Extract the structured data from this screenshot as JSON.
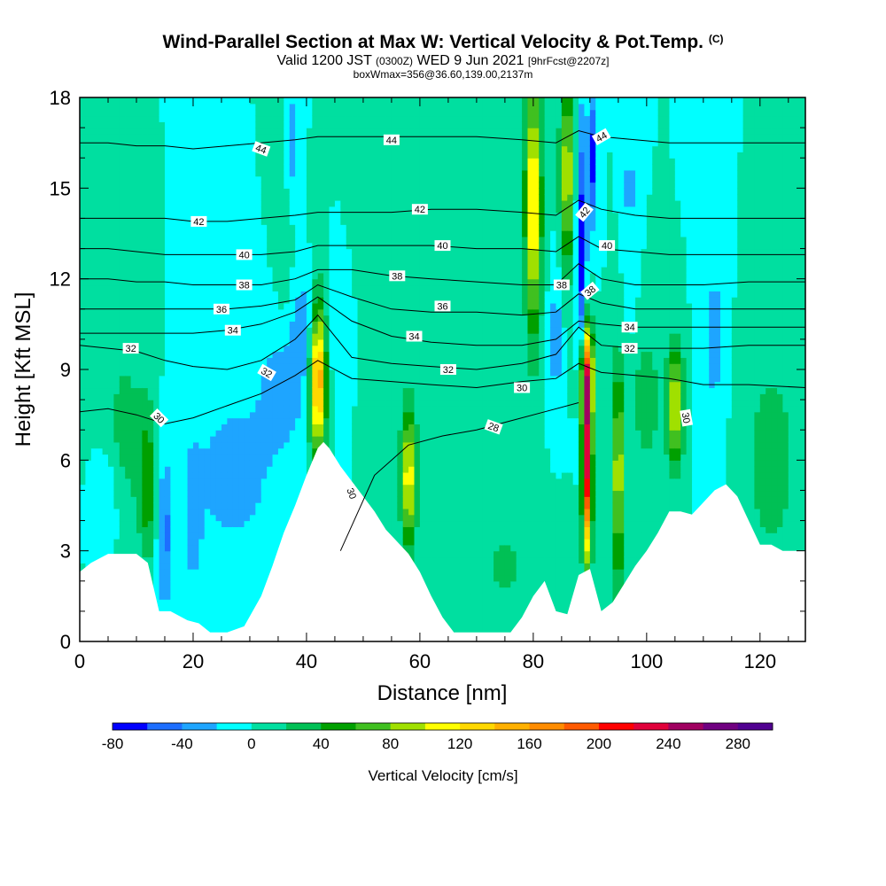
{
  "title": {
    "main": "Wind-Parallel Section at Max W: Vertical Velocity & Pot.Temp.",
    "copyright": "(C)",
    "valid_prefix": "Valid 1200 JST",
    "valid_utc": "(0300Z)",
    "valid_date": "WED 9 Jun 2021",
    "forecast": "[9hrFcst@2207z]",
    "box": "boxWmax=356@36.60,139.00,2137m"
  },
  "chart_data": {
    "type": "heatmap",
    "xlabel": "Distance [nm]",
    "ylabel": "Height [Kft MSL]",
    "xlim": [
      0,
      128
    ],
    "ylim": [
      0,
      18
    ],
    "x_ticks": [
      0,
      20,
      40,
      60,
      80,
      100,
      120
    ],
    "y_ticks": [
      0,
      3,
      6,
      9,
      12,
      15,
      18
    ],
    "background_value": 0,
    "terrain": {
      "x": [
        0,
        2,
        5,
        10,
        12,
        14,
        16,
        19,
        21,
        23,
        26,
        29,
        32,
        34,
        36,
        38,
        40,
        42,
        43,
        44,
        46,
        48,
        50,
        52,
        54,
        56,
        58,
        60,
        62,
        64,
        66,
        68,
        70,
        72,
        74,
        76,
        78,
        80,
        82,
        84,
        86,
        88,
        90,
        92,
        94,
        96,
        98,
        100,
        102,
        104,
        106,
        108,
        110,
        112,
        114,
        116,
        118,
        120,
        122,
        124,
        126,
        128
      ],
      "y": [
        2.3,
        2.6,
        2.9,
        2.9,
        2.6,
        1.0,
        1.0,
        0.7,
        0.6,
        0.3,
        0.3,
        0.5,
        1.5,
        2.5,
        3.6,
        4.5,
        5.5,
        6.4,
        6.6,
        6.4,
        5.8,
        5.3,
        4.8,
        4.3,
        3.7,
        3.3,
        2.9,
        2.3,
        1.5,
        0.8,
        0.3,
        0.3,
        0.3,
        0.3,
        0.3,
        0.3,
        0.8,
        1.5,
        2.0,
        1.0,
        0.9,
        2.2,
        2.4,
        1.0,
        1.3,
        1.9,
        2.5,
        3.0,
        3.6,
        4.3,
        4.3,
        4.2,
        4.6,
        5.0,
        5.2,
        4.8,
        4.0,
        3.2,
        3.2,
        3.0,
        3.0,
        3.0
      ]
    },
    "velocity_features": [
      {
        "x": 12,
        "y": 5.2,
        "sx": 1.2,
        "sy": 1.8,
        "value": 55
      },
      {
        "x": 42,
        "y": 8.8,
        "sx": 1.0,
        "sy": 1.8,
        "value": 170
      },
      {
        "x": 58,
        "y": 5.4,
        "sx": 0.9,
        "sy": 1.6,
        "value": 115
      },
      {
        "x": 80,
        "y": 14.5,
        "sx": 1.0,
        "sy": 3.0,
        "value": 130
      },
      {
        "x": 86,
        "y": 15.5,
        "sx": 0.9,
        "sy": 2.2,
        "value": 100
      },
      {
        "x": 89.5,
        "y": 6.2,
        "sx": 0.6,
        "sy": 2.5,
        "value": 230
      },
      {
        "x": 89.5,
        "y": 8.8,
        "sx": 0.9,
        "sy": 1.0,
        "value": 120
      },
      {
        "x": 95,
        "y": 5.5,
        "sx": 0.8,
        "sy": 2.5,
        "value": 100
      },
      {
        "x": 105,
        "y": 7.8,
        "sx": 1.0,
        "sy": 1.4,
        "value": 110
      },
      {
        "x": 100,
        "y": 8.0,
        "sx": 1.5,
        "sy": 1.5,
        "value": 40
      },
      {
        "x": 8,
        "y": 7.0,
        "sx": 2.5,
        "sy": 2.0,
        "value": 30
      },
      {
        "x": 36,
        "y": 15.0,
        "sx": 1.0,
        "sy": 3.0,
        "value": 25
      },
      {
        "x": 65,
        "y": 9.0,
        "sx": 6.0,
        "sy": 4.0,
        "value": 8
      },
      {
        "x": 52,
        "y": 12.5,
        "sx": 2.0,
        "sy": 2.0,
        "value": 18
      },
      {
        "x": 122,
        "y": 6.0,
        "sx": 4.0,
        "sy": 3.0,
        "value": 28
      },
      {
        "x": 75,
        "y": 2.5,
        "sx": 4.0,
        "sy": 1.5,
        "value": 22
      },
      {
        "x": 27,
        "y": 5.5,
        "sx": 6.0,
        "sy": 2.2,
        "value": -28
      },
      {
        "x": 36,
        "y": 8.5,
        "sx": 3.0,
        "sy": 1.5,
        "value": -30
      },
      {
        "x": 40,
        "y": 10.5,
        "sx": 1.8,
        "sy": 1.2,
        "value": -35
      },
      {
        "x": 88.5,
        "y": 13.0,
        "sx": 0.7,
        "sy": 3.0,
        "value": -75
      },
      {
        "x": 90.5,
        "y": 16.0,
        "sx": 0.6,
        "sy": 1.5,
        "value": -70
      },
      {
        "x": 37,
        "y": 16.5,
        "sx": 0.8,
        "sy": 1.5,
        "value": -45
      },
      {
        "x": 84,
        "y": 10.0,
        "sx": 0.8,
        "sy": 1.5,
        "value": -35
      },
      {
        "x": 15,
        "y": 3.5,
        "sx": 1.0,
        "sy": 1.8,
        "value": -45
      },
      {
        "x": 20,
        "y": 4.0,
        "sx": 1.0,
        "sy": 1.5,
        "value": -30
      },
      {
        "x": 46,
        "y": 10.5,
        "sx": 1.5,
        "sy": 1.2,
        "value": -20
      },
      {
        "x": 112,
        "y": 10.0,
        "sx": 1.5,
        "sy": 3.0,
        "value": -25
      },
      {
        "x": 97,
        "y": 15.0,
        "sx": 0.8,
        "sy": 2.5,
        "value": -25
      },
      {
        "x": 5,
        "y": 5.0,
        "sx": 1.5,
        "sy": 1.2,
        "value": -20
      }
    ],
    "theta_contours": [
      {
        "value": 28,
        "x": [
          46,
          52,
          58,
          64,
          70,
          76,
          82,
          88
        ],
        "y": [
          3.0,
          5.5,
          6.5,
          6.8,
          7.0,
          7.3,
          7.6,
          7.9
        ]
      },
      {
        "value": 30,
        "x": [
          0,
          5,
          10,
          15,
          20,
          26,
          32,
          38,
          42,
          48,
          55,
          62,
          70,
          78,
          84,
          88,
          92,
          98,
          104,
          110,
          118,
          128
        ],
        "y": [
          7.6,
          7.7,
          7.5,
          7.2,
          7.4,
          7.8,
          8.2,
          8.8,
          9.3,
          8.7,
          8.6,
          8.5,
          8.4,
          8.6,
          8.7,
          9.2,
          8.9,
          8.8,
          8.7,
          8.5,
          8.5,
          8.4
        ]
      },
      {
        "value": 32,
        "x": [
          0,
          5,
          10,
          15,
          20,
          26,
          32,
          38,
          42,
          48,
          55,
          62,
          70,
          78,
          84,
          88,
          92,
          98,
          104,
          110,
          118,
          128
        ],
        "y": [
          9.8,
          9.7,
          9.6,
          9.3,
          9.1,
          9.0,
          9.3,
          10.0,
          10.8,
          9.4,
          9.2,
          9.1,
          9.0,
          9.2,
          9.5,
          10.4,
          9.8,
          9.7,
          9.7,
          9.7,
          9.8,
          9.8
        ]
      },
      {
        "value": 34,
        "x": [
          0,
          5,
          10,
          15,
          20,
          26,
          32,
          38,
          42,
          48,
          55,
          62,
          70,
          78,
          84,
          88,
          92,
          98,
          104,
          110,
          118,
          128
        ],
        "y": [
          10.2,
          10.2,
          10.2,
          10.2,
          10.2,
          10.3,
          10.5,
          10.9,
          11.4,
          10.6,
          10.1,
          9.9,
          9.8,
          9.8,
          10.0,
          10.6,
          10.5,
          10.4,
          10.4,
          10.4,
          10.4,
          10.4
        ]
      },
      {
        "value": 36,
        "x": [
          0,
          5,
          10,
          15,
          20,
          26,
          32,
          38,
          42,
          48,
          55,
          62,
          70,
          78,
          84,
          88,
          92,
          98,
          104,
          110,
          118,
          128
        ],
        "y": [
          11.0,
          11.0,
          11.0,
          11.0,
          11.0,
          11.0,
          11.1,
          11.3,
          11.8,
          11.4,
          11.0,
          10.9,
          10.9,
          10.8,
          10.9,
          11.5,
          11.2,
          11.0,
          11.0,
          11.0,
          11.0,
          11.0
        ]
      },
      {
        "value": 38,
        "x": [
          0,
          5,
          10,
          15,
          20,
          26,
          32,
          38,
          42,
          48,
          55,
          62,
          70,
          78,
          84,
          88,
          92,
          98,
          104,
          110,
          118,
          128
        ],
        "y": [
          12.0,
          12.0,
          11.9,
          11.9,
          11.8,
          11.8,
          11.8,
          12.0,
          12.3,
          12.3,
          12.1,
          12.0,
          11.9,
          11.8,
          11.8,
          12.5,
          12.0,
          11.8,
          11.8,
          11.8,
          11.9,
          11.9
        ]
      },
      {
        "value": 40,
        "x": [
          0,
          5,
          10,
          15,
          20,
          26,
          32,
          38,
          42,
          48,
          55,
          62,
          70,
          78,
          84,
          88,
          92,
          98,
          104,
          110,
          118,
          128
        ],
        "y": [
          13.0,
          13.0,
          12.9,
          12.8,
          12.8,
          12.8,
          12.8,
          12.9,
          13.1,
          13.1,
          13.1,
          13.1,
          13.0,
          13.0,
          12.9,
          13.4,
          13.0,
          12.9,
          12.8,
          12.8,
          12.8,
          12.8
        ]
      },
      {
        "value": 42,
        "x": [
          0,
          5,
          10,
          15,
          20,
          26,
          32,
          38,
          42,
          48,
          55,
          62,
          70,
          78,
          84,
          88,
          92,
          98,
          104,
          110,
          118,
          128
        ],
        "y": [
          14.0,
          14.0,
          14.0,
          14.0,
          13.9,
          13.9,
          14.0,
          14.1,
          14.2,
          14.2,
          14.2,
          14.3,
          14.3,
          14.2,
          14.1,
          14.6,
          14.3,
          14.1,
          14.0,
          14.0,
          14.0,
          14.0
        ]
      },
      {
        "value": 44,
        "x": [
          0,
          5,
          10,
          15,
          20,
          26,
          32,
          38,
          42,
          48,
          55,
          62,
          70,
          78,
          84,
          88,
          92,
          98,
          104,
          110,
          118,
          128
        ],
        "y": [
          16.5,
          16.5,
          16.4,
          16.4,
          16.3,
          16.4,
          16.5,
          16.6,
          16.7,
          16.7,
          16.7,
          16.7,
          16.7,
          16.6,
          16.5,
          16.9,
          16.7,
          16.6,
          16.5,
          16.5,
          16.5,
          16.5
        ]
      }
    ],
    "theta_labels": [
      {
        "text": "44",
        "x": 32,
        "y": 16.3,
        "angle": 20
      },
      {
        "text": "44",
        "x": 55,
        "y": 16.6,
        "angle": 0
      },
      {
        "text": "44",
        "x": 92,
        "y": 16.7,
        "angle": -30
      },
      {
        "text": "42",
        "x": 21,
        "y": 13.9,
        "angle": 0
      },
      {
        "text": "42",
        "x": 60,
        "y": 14.3,
        "angle": 0
      },
      {
        "text": "42",
        "x": 89,
        "y": 14.2,
        "angle": -50
      },
      {
        "text": "40",
        "x": 29,
        "y": 12.8,
        "angle": 0
      },
      {
        "text": "40",
        "x": 64,
        "y": 13.1,
        "angle": 0
      },
      {
        "text": "40",
        "x": 93,
        "y": 13.1,
        "angle": 0
      },
      {
        "text": "38",
        "x": 29,
        "y": 11.8,
        "angle": 0
      },
      {
        "text": "38",
        "x": 56,
        "y": 12.1,
        "angle": 0
      },
      {
        "text": "38",
        "x": 85,
        "y": 11.8,
        "angle": 0
      },
      {
        "text": "38",
        "x": 90,
        "y": 11.6,
        "angle": -40
      },
      {
        "text": "36",
        "x": 25,
        "y": 11.0,
        "angle": 0
      },
      {
        "text": "36",
        "x": 64,
        "y": 11.1,
        "angle": 0
      },
      {
        "text": "34",
        "x": 27,
        "y": 10.3,
        "angle": 0
      },
      {
        "text": "34",
        "x": 59,
        "y": 10.1,
        "angle": 0
      },
      {
        "text": "34",
        "x": 97,
        "y": 10.4,
        "angle": 0
      },
      {
        "text": "32",
        "x": 9,
        "y": 9.7,
        "angle": 0
      },
      {
        "text": "32",
        "x": 33,
        "y": 8.9,
        "angle": 30
      },
      {
        "text": "32",
        "x": 65,
        "y": 9.0,
        "angle": 0
      },
      {
        "text": "32",
        "x": 97,
        "y": 9.7,
        "angle": 0
      },
      {
        "text": "30",
        "x": 14,
        "y": 7.4,
        "angle": 45
      },
      {
        "text": "30",
        "x": 78,
        "y": 8.4,
        "angle": 0
      },
      {
        "text": "30",
        "x": 107,
        "y": 7.4,
        "angle": 80
      },
      {
        "text": "30",
        "x": 48,
        "y": 4.9,
        "angle": 70
      },
      {
        "text": "28",
        "x": 73,
        "y": 7.1,
        "angle": 20
      }
    ],
    "colorbar": {
      "label": "Vertical Velocity [cm/s]",
      "min": -80,
      "max": 300,
      "step": 20,
      "tick_values": [
        -80,
        -40,
        0,
        40,
        80,
        120,
        160,
        200,
        240,
        280
      ],
      "tick_labels": [
        "-80",
        "-40",
        "0",
        "40",
        "80",
        "120",
        "160",
        "200",
        "240",
        "280"
      ],
      "colors": [
        "#0000ff",
        "#1d6eff",
        "#1ea5ff",
        "#00ffff",
        "#00dfa0",
        "#00c055",
        "#00a000",
        "#40c020",
        "#a0e000",
        "#ffff00",
        "#ffd800",
        "#ffb000",
        "#ff8c00",
        "#ff5a00",
        "#ff0000",
        "#e0003a",
        "#a00060",
        "#700080",
        "#500090"
      ]
    }
  }
}
